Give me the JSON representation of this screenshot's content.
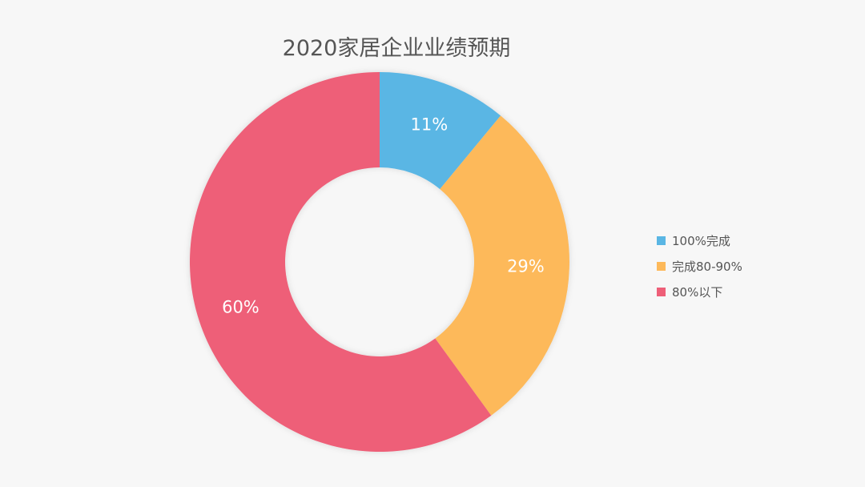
{
  "chart_data": {
    "type": "pie",
    "donut": true,
    "title": "2020家居企业业绩预期",
    "categories": [
      "100%完成",
      "完成80-90%",
      "80%以下"
    ],
    "values": [
      11,
      29,
      60
    ],
    "data_labels": [
      "11%",
      "29%",
      "60%"
    ],
    "colors": [
      "#5ab6e4",
      "#fdb95a",
      "#ee5f78"
    ],
    "legend_position": "right"
  }
}
